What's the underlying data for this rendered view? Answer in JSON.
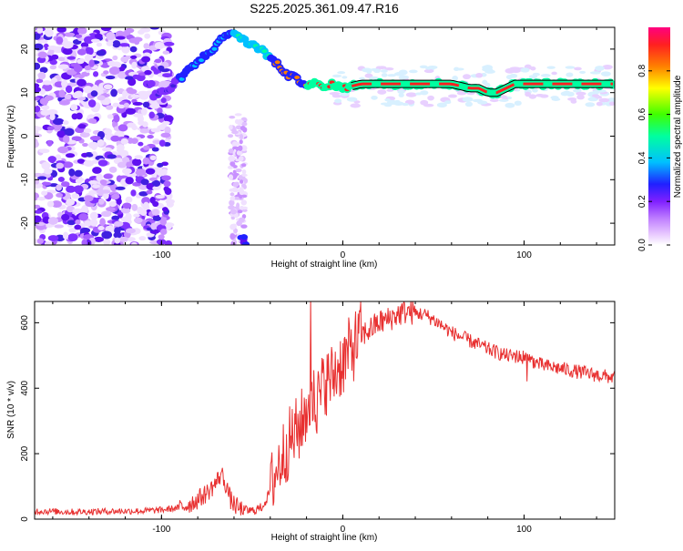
{
  "title": "S225.2025.361.09.47.R16",
  "chart_data": [
    {
      "type": "heatmap",
      "xlabel": "Height of straight line (km)",
      "ylabel": "Frequency (Hz)",
      "xlim": [
        -170,
        150
      ],
      "ylim": [
        -25,
        25
      ],
      "xticks": [
        -100,
        0,
        100
      ],
      "yticks": [
        -20,
        -10,
        0,
        10,
        20
      ],
      "xtick_labels": [
        "-100",
        "0",
        "100"
      ],
      "ytick_labels": [
        "-20",
        "-10",
        "0",
        "10",
        "20"
      ],
      "ridge": {
        "x": [
          -105,
          -95,
          -88,
          -80,
          -72,
          -65,
          -60,
          -55,
          -50,
          -45,
          -40,
          -35,
          -30,
          -25,
          -20,
          -15,
          -10,
          -5,
          0,
          10,
          20,
          30,
          40,
          50,
          60,
          70,
          75,
          80,
          85,
          90,
          95,
          100,
          110,
          120,
          130,
          140,
          150
        ],
        "y": [
          9,
          11,
          14,
          17,
          20,
          23,
          24,
          22,
          21,
          20,
          18,
          16,
          14,
          13,
          12,
          12,
          11,
          12,
          11,
          12,
          12,
          12,
          12,
          12,
          12,
          11,
          11,
          10,
          10,
          11,
          12,
          12,
          12,
          12,
          12,
          12,
          12
        ]
      },
      "colorbar": {
        "label": "Normalized spectral amplitude",
        "range": [
          0,
          1
        ],
        "ticks": [
          0.0,
          0.2,
          0.4,
          0.6,
          0.8
        ],
        "tick_labels": [
          "0.0",
          "0.2",
          "0.4",
          "0.6",
          "0.8"
        ],
        "colors": [
          "#ffffff",
          "#e8c8ff",
          "#c080ff",
          "#8020ff",
          "#2020ff",
          "#00c0ff",
          "#00ffa0",
          "#40ff00",
          "#ffff00",
          "#ff8000",
          "#ff2020",
          "#ff0080"
        ]
      }
    },
    {
      "type": "line",
      "xlabel": "Height of straight line (km)",
      "ylabel": "SNR (10 * v/v)",
      "xlim": [
        -170,
        150
      ],
      "ylim": [
        0,
        665
      ],
      "xticks": [
        -100,
        0,
        100
      ],
      "yticks": [
        0,
        200,
        400,
        600
      ],
      "xtick_labels": [
        "-100",
        "0",
        "100"
      ],
      "ytick_labels": [
        "0",
        "200",
        "400",
        "600"
      ],
      "color": "#e83030",
      "series": [
        {
          "name": "SNR",
          "x": [
            -170,
            -150,
            -130,
            -110,
            -100,
            -90,
            -85,
            -80,
            -75,
            -70,
            -67,
            -64,
            -62,
            -60,
            -57,
            -55,
            -50,
            -45,
            -42,
            -40,
            -38,
            -35,
            -32,
            -30,
            -28,
            -25,
            -22,
            -20,
            -17,
            -15,
            -12,
            -10,
            -8,
            -5,
            -2,
            0,
            5,
            10,
            15,
            20,
            25,
            30,
            35,
            40,
            45,
            50,
            55,
            60,
            70,
            80,
            90,
            100,
            110,
            120,
            130,
            140,
            150
          ],
          "y": [
            25,
            22,
            24,
            25,
            28,
            35,
            45,
            60,
            80,
            110,
            140,
            100,
            60,
            45,
            30,
            28,
            25,
            35,
            60,
            90,
            130,
            170,
            210,
            230,
            250,
            270,
            300,
            340,
            380,
            350,
            380,
            430,
            420,
            440,
            470,
            480,
            520,
            560,
            580,
            600,
            610,
            625,
            635,
            630,
            625,
            610,
            590,
            570,
            545,
            520,
            500,
            495,
            470,
            460,
            450,
            440,
            432
          ]
        }
      ]
    }
  ]
}
